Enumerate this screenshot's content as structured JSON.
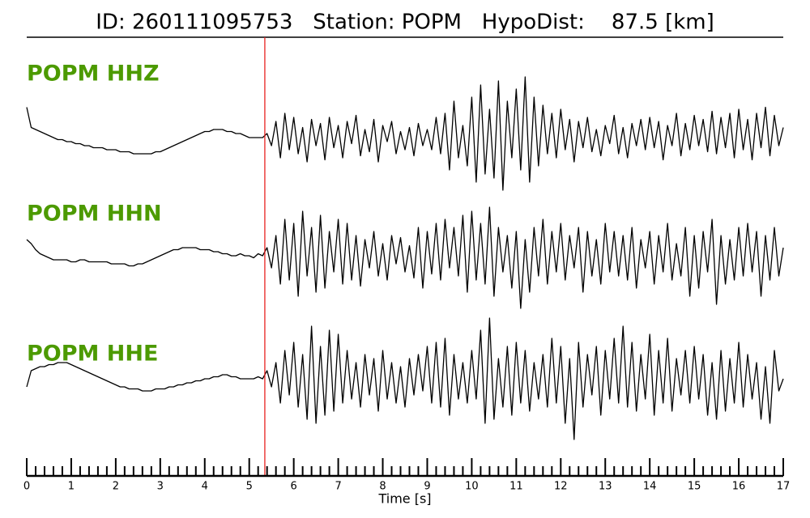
{
  "chart_data": {
    "type": "line",
    "title": "ID: 260111095753   Station: POPM   HypoDist:    87.5 [km]",
    "x_label": "Time [s]",
    "xlim": [
      0,
      17
    ],
    "xticks": [
      0,
      1,
      2,
      3,
      4,
      5,
      6,
      7,
      8,
      9,
      10,
      11,
      12,
      13,
      14,
      15,
      16,
      17
    ],
    "xminor": 5,
    "ylim": [
      -30,
      30
    ],
    "pick": {
      "x": 5.35,
      "color": "#e8211e"
    },
    "x": [
      0.0,
      0.1,
      0.2,
      0.3,
      0.4,
      0.5,
      0.6,
      0.7,
      0.8,
      0.9,
      1.0,
      1.1,
      1.2,
      1.3,
      1.4,
      1.5,
      1.6,
      1.7,
      1.8,
      1.9,
      2.0,
      2.1,
      2.2,
      2.3,
      2.4,
      2.5,
      2.6,
      2.7,
      2.8,
      2.9,
      3.0,
      3.1,
      3.2,
      3.3,
      3.4,
      3.5,
      3.6,
      3.7,
      3.8,
      3.9,
      4.0,
      4.1,
      4.2,
      4.3,
      4.4,
      4.5,
      4.6,
      4.7,
      4.8,
      4.9,
      5.0,
      5.1,
      5.2,
      5.3,
      5.4,
      5.5,
      5.6,
      5.7,
      5.8,
      5.9,
      6.0,
      6.1,
      6.2,
      6.3,
      6.4,
      6.5,
      6.6,
      6.7,
      6.8,
      6.9,
      7.0,
      7.1,
      7.2,
      7.3,
      7.4,
      7.5,
      7.6,
      7.7,
      7.8,
      7.9,
      8.0,
      8.1,
      8.2,
      8.3,
      8.4,
      8.5,
      8.6,
      8.7,
      8.8,
      8.9,
      9.0,
      9.1,
      9.2,
      9.3,
      9.4,
      9.5,
      9.6,
      9.7,
      9.8,
      9.9,
      10.0,
      10.1,
      10.2,
      10.3,
      10.4,
      10.5,
      10.6,
      10.7,
      10.8,
      10.9,
      11.0,
      11.1,
      11.2,
      11.3,
      11.4,
      11.5,
      11.6,
      11.7,
      11.8,
      11.9,
      12.0,
      12.1,
      12.2,
      12.3,
      12.4,
      12.5,
      12.6,
      12.7,
      12.8,
      12.9,
      13.0,
      13.1,
      13.2,
      13.3,
      13.4,
      13.5,
      13.6,
      13.7,
      13.8,
      13.9,
      14.0,
      14.1,
      14.2,
      14.3,
      14.4,
      14.5,
      14.6,
      14.7,
      14.8,
      14.9,
      15.0,
      15.1,
      15.2,
      15.3,
      15.4,
      15.5,
      15.6,
      15.7,
      15.8,
      15.9,
      16.0,
      16.1,
      16.2,
      16.3,
      16.4,
      16.5,
      16.6,
      16.7,
      16.8,
      16.9,
      17.0
    ],
    "series": [
      {
        "name": "POPM HHZ",
        "color": "#000000",
        "values": [
          15,
          5,
          4,
          3,
          2,
          1,
          0,
          -1,
          -1,
          -2,
          -2,
          -3,
          -3,
          -4,
          -4,
          -5,
          -5,
          -5,
          -6,
          -6,
          -6,
          -7,
          -7,
          -7,
          -8,
          -8,
          -8,
          -8,
          -8,
          -7,
          -7,
          -6,
          -5,
          -4,
          -3,
          -2,
          -1,
          0,
          1,
          2,
          3,
          3,
          4,
          4,
          4,
          3,
          3,
          2,
          2,
          1,
          0,
          0,
          0,
          0,
          2,
          -4,
          8,
          -10,
          12,
          -6,
          10,
          -8,
          5,
          -12,
          9,
          -4,
          7,
          -11,
          10,
          -5,
          6,
          -10,
          8,
          -3,
          11,
          -9,
          4,
          -7,
          9,
          -12,
          6,
          -2,
          8,
          -8,
          3,
          -6,
          5,
          -9,
          7,
          -4,
          4,
          -6,
          10,
          -8,
          12,
          -16,
          18,
          -10,
          6,
          -14,
          20,
          -22,
          26,
          -18,
          14,
          -20,
          28,
          -26,
          18,
          -10,
          24,
          -16,
          30,
          -22,
          20,
          -14,
          16,
          -8,
          12,
          -10,
          14,
          -6,
          9,
          -12,
          8,
          -5,
          10,
          -7,
          4,
          -9,
          6,
          -3,
          11,
          -8,
          5,
          -10,
          7,
          -4,
          9,
          -6,
          10,
          -5,
          8,
          -11,
          6,
          -4,
          12,
          -9,
          7,
          -6,
          11,
          -4,
          9,
          -7,
          13,
          -8,
          10,
          -5,
          12,
          -10,
          14,
          -6,
          9,
          -11,
          12,
          -5,
          15,
          -9,
          11,
          -4,
          5
        ]
      },
      {
        "name": "POPM HHN",
        "color": "#000000",
        "values": [
          8,
          6,
          3,
          1,
          0,
          -1,
          -2,
          -2,
          -2,
          -2,
          -3,
          -3,
          -2,
          -2,
          -3,
          -3,
          -3,
          -3,
          -3,
          -4,
          -4,
          -4,
          -4,
          -5,
          -5,
          -4,
          -4,
          -3,
          -2,
          -1,
          0,
          1,
          2,
          3,
          3,
          4,
          4,
          4,
          4,
          3,
          3,
          3,
          2,
          2,
          1,
          1,
          0,
          0,
          1,
          0,
          0,
          -1,
          1,
          0,
          4,
          -6,
          10,
          -14,
          18,
          -12,
          16,
          -20,
          22,
          -10,
          14,
          -18,
          20,
          -16,
          12,
          -8,
          18,
          -14,
          16,
          -12,
          10,
          -15,
          8,
          -6,
          12,
          -10,
          6,
          -12,
          10,
          -4,
          9,
          -8,
          5,
          -11,
          14,
          -16,
          12,
          -9,
          16,
          -12,
          18,
          -6,
          14,
          -10,
          20,
          -18,
          22,
          -12,
          16,
          -14,
          24,
          -20,
          14,
          -8,
          10,
          -16,
          12,
          -26,
          8,
          -18,
          14,
          -10,
          18,
          -14,
          12,
          -8,
          16,
          -12,
          10,
          -6,
          14,
          -18,
          12,
          -10,
          8,
          -14,
          16,
          -8,
          12,
          -10,
          10,
          -12,
          14,
          -16,
          8,
          -6,
          12,
          -14,
          10,
          -8,
          16,
          -12,
          6,
          -10,
          14,
          -20,
          10,
          -16,
          12,
          -8,
          18,
          -24,
          10,
          -14,
          8,
          -12,
          14,
          -10,
          16,
          -8,
          12,
          -20,
          10,
          -12,
          14,
          -10,
          4
        ]
      },
      {
        "name": "POPM HHE",
        "color": "#000000",
        "values": [
          -4,
          4,
          5,
          6,
          6,
          7,
          7,
          8,
          8,
          8,
          7,
          6,
          5,
          4,
          3,
          2,
          1,
          0,
          -1,
          -2,
          -3,
          -4,
          -4,
          -5,
          -5,
          -5,
          -6,
          -6,
          -6,
          -5,
          -5,
          -5,
          -4,
          -4,
          -3,
          -3,
          -2,
          -2,
          -1,
          -1,
          0,
          0,
          1,
          1,
          2,
          2,
          1,
          1,
          0,
          0,
          0,
          0,
          1,
          0,
          4,
          -4,
          8,
          -12,
          14,
          -8,
          18,
          -14,
          12,
          -20,
          26,
          -22,
          16,
          -18,
          24,
          -16,
          22,
          -12,
          14,
          -10,
          8,
          -14,
          12,
          -8,
          10,
          -16,
          14,
          -10,
          8,
          -12,
          6,
          -14,
          10,
          -8,
          12,
          -6,
          16,
          -12,
          18,
          -14,
          20,
          -18,
          12,
          -10,
          8,
          -12,
          14,
          -10,
          24,
          -22,
          30,
          -20,
          10,
          -14,
          16,
          -18,
          18,
          -12,
          14,
          -16,
          8,
          -10,
          12,
          -14,
          20,
          -12,
          16,
          -22,
          10,
          -30,
          18,
          -14,
          12,
          -8,
          16,
          -18,
          14,
          -10,
          20,
          -12,
          26,
          -14,
          18,
          -16,
          12,
          -10,
          22,
          -18,
          14,
          -12,
          20,
          -16,
          10,
          -8,
          14,
          -12,
          16,
          -10,
          12,
          -18,
          8,
          -20,
          14,
          -16,
          10,
          -12,
          18,
          -14,
          12,
          -10,
          8,
          -20,
          6,
          -22,
          14,
          -6,
          0
        ]
      }
    ]
  }
}
